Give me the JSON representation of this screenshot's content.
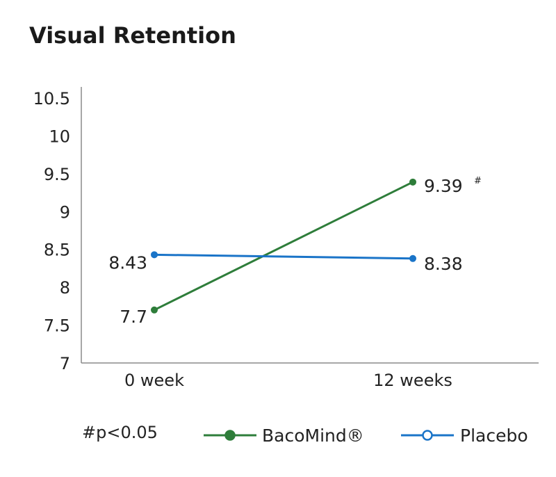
{
  "chart_data": {
    "type": "line",
    "title": "Visual Retention",
    "categories": [
      "0 week",
      "12 weeks"
    ],
    "ylim": [
      7,
      10.5
    ],
    "yticks": [
      "7",
      "7.5",
      "8",
      "8.5",
      "9",
      "9.5",
      "10",
      "10.5"
    ],
    "grid": false,
    "legend_position": "bottom",
    "note": "#p<0.05",
    "series": [
      {
        "name": "BacoMind®",
        "color": "#2e7d3a",
        "marker": "filled-circle",
        "values": [
          7.7,
          9.39
        ],
        "labels": [
          "7.7",
          "9.39"
        ],
        "label_marks": [
          "",
          "#"
        ]
      },
      {
        "name": "Placebo",
        "color": "#1a74c8",
        "marker": "open-circle",
        "values": [
          8.43,
          8.38
        ],
        "labels": [
          "8.43",
          "8.38"
        ],
        "label_marks": [
          "",
          ""
        ]
      }
    ]
  }
}
